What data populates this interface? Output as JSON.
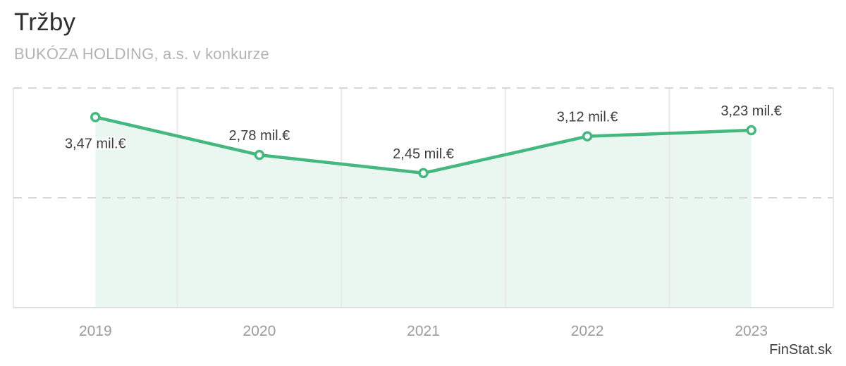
{
  "header": {
    "title": "Tržby",
    "subtitle": "BUKÓZA HOLDING, a.s. v konkurze"
  },
  "watermark": "FinStat.sk",
  "chart_data": {
    "type": "area",
    "title": "Tržby",
    "subtitle": "BUKÓZA HOLDING, a.s. v konkurze",
    "categories": [
      "2019",
      "2020",
      "2021",
      "2022",
      "2023"
    ],
    "series": [
      {
        "name": "Tržby",
        "values": [
          3.47,
          2.78,
          2.45,
          3.12,
          3.23
        ],
        "labels": [
          "3,47 mil.€",
          "2,78 mil.€",
          "2,45 mil.€",
          "3,12 mil.€",
          "3,23 mil.€"
        ],
        "label_placement": [
          "below",
          "above",
          "above",
          "above",
          "above"
        ],
        "unit": "mil.€"
      }
    ],
    "xlabel": "",
    "ylabel": "",
    "ylim": [
      0,
      4
    ],
    "gridlines_y": [
      0,
      2,
      4
    ],
    "grid": "dashed-horizontal, solid-vertical",
    "legend": "none",
    "colors": {
      "line": "#45b87f",
      "marker_fill": "#ffffff",
      "area_fill": "#eaf7f1",
      "grid_dashed": "#d7d7d7",
      "grid_vertical": "#e9e9e9",
      "axis_line": "#dedede",
      "data_label": "#3d3d3d",
      "tick_label": "#9c9c9c"
    }
  }
}
